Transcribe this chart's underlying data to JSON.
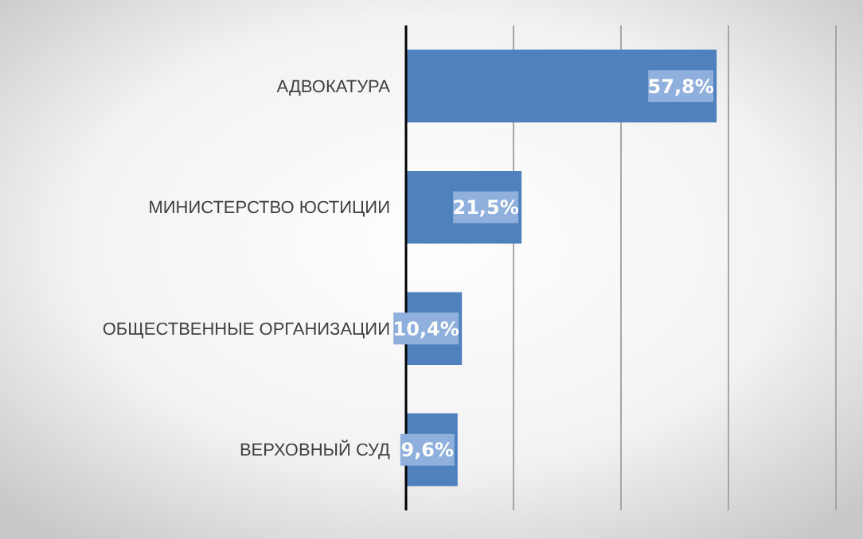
{
  "chart_data": {
    "type": "bar",
    "orientation": "horizontal",
    "categories": [
      "АДВОКАТУРА",
      "МИНИСТЕРСТВО ЮСТИЦИИ",
      "ОБЩЕСТВЕННЫЕ ОРГАНИЗАЦИИ",
      "ВЕРХОВНЫЙ СУД"
    ],
    "values": [
      57.8,
      21.5,
      10.4,
      9.6
    ],
    "value_labels": [
      "57,8%",
      "21,5%",
      "10,4%",
      "9,6%"
    ],
    "color": "#4f81bd",
    "xlim": [
      0,
      80
    ],
    "xticks": [
      {
        "value": 0,
        "label": null
      },
      {
        "value": 20,
        "label": null
      },
      {
        "value": 40,
        "label": null
      },
      {
        "value": 60,
        "label": null
      },
      {
        "value": 80,
        "label": null
      }
    ],
    "grid": "x",
    "tick_labels": "y"
  }
}
